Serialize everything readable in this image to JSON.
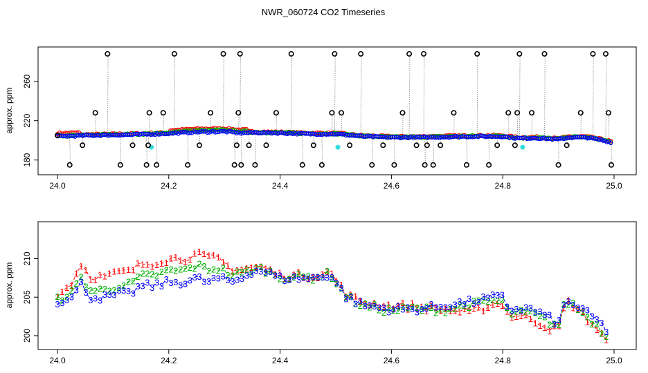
{
  "chart_data": [
    {
      "type": "scatter",
      "title": "NWR_060724  CO2 Timeseries",
      "xlabel": "",
      "ylabel": "approx. ppm",
      "xlim": [
        24.0,
        25.0
      ],
      "ylim": [
        165,
        295
      ],
      "xticks": [
        "24.0",
        "24.2",
        "24.4",
        "24.6",
        "24.8",
        "25.0"
      ],
      "yticks": [
        "180",
        "220",
        "260"
      ],
      "colors": {
        "series1": "#ff0000",
        "series2": "#00b000",
        "series3": "#0000ff",
        "flagged": "#000000",
        "cyan": "#33dddd",
        "spike": "#9a9a9a"
      },
      "base_curve": {
        "x": [
          24.0,
          24.05,
          24.1,
          24.15,
          24.2,
          24.25,
          24.3,
          24.33,
          24.35,
          24.4,
          24.45,
          24.5,
          24.55,
          24.6,
          24.65,
          24.7,
          24.75,
          24.8,
          24.83,
          24.86,
          24.9,
          24.92,
          24.95,
          24.98,
          24.995
        ],
        "y": [
          204,
          205,
          205.5,
          206,
          207,
          208.5,
          209,
          207.5,
          208,
          207.5,
          206.5,
          206.5,
          204,
          203,
          203,
          203.5,
          204,
          204,
          202,
          202.5,
          201,
          203,
          203,
          200,
          198
        ]
      },
      "flagged_points": {
        "x": [
          24.0,
          24.022,
          24.045,
          24.068,
          24.09,
          24.113,
          24.135,
          24.16,
          24.163,
          24.165,
          24.178,
          24.19,
          24.21,
          24.234,
          24.255,
          24.275,
          24.298,
          24.318,
          24.322,
          24.325,
          24.328,
          24.33,
          24.344,
          24.355,
          24.375,
          24.393,
          24.42,
          24.44,
          24.46,
          24.475,
          24.493,
          24.498,
          24.51,
          24.525,
          24.545,
          24.565,
          24.585,
          24.605,
          24.62,
          24.632,
          24.645,
          24.658,
          24.66,
          24.664,
          24.675,
          24.688,
          24.712,
          24.735,
          24.754,
          24.775,
          24.79,
          24.81,
          24.822,
          24.826,
          24.83,
          24.852,
          24.875,
          24.9,
          24.915,
          24.94,
          24.962,
          24.985,
          24.99,
          24.995
        ],
        "y": [
          205,
          175,
          195,
          228,
          288,
          175,
          195,
          175,
          195,
          228,
          175,
          228,
          288,
          175,
          195,
          228,
          288,
          175,
          195,
          228,
          288,
          175,
          195,
          175,
          195,
          228,
          288,
          175,
          195,
          175,
          228,
          288,
          228,
          195,
          288,
          175,
          195,
          175,
          228,
          288,
          195,
          288,
          175,
          195,
          175,
          195,
          228,
          175,
          288,
          175,
          195,
          228,
          195,
          228,
          288,
          228,
          288,
          175,
          195,
          228,
          288,
          288,
          228,
          175
        ]
      },
      "cyan_points": {
        "x": [
          24.165,
          24.5,
          24.832
        ],
        "y": [
          193,
          193,
          193
        ]
      }
    },
    {
      "type": "line",
      "title": "",
      "xlabel": "",
      "ylabel": "approx. ppm",
      "xlim": [
        24.0,
        25.0
      ],
      "ylim": [
        198.2,
        214.8
      ],
      "xticks": [
        "24.0",
        "24.2",
        "24.4",
        "24.6",
        "24.8",
        "25.0"
      ],
      "yticks": [
        "200",
        "205",
        "210"
      ],
      "series": [
        {
          "name": "1",
          "marker": "1",
          "color": "#ff0000",
          "offset": [
            0.6,
            2.6,
            3.2,
            0.4,
            0.3,
            0.4,
            0.4,
            -0.6,
            -1.4,
            -0.7,
            -1.4,
            0.0,
            -1.6
          ]
        },
        {
          "name": "2",
          "marker": "2",
          "color": "#00b000",
          "offset": [
            0.2,
            0.8,
            1.7,
            0.2,
            0.1,
            -0.2,
            0.1,
            -0.6,
            -0.3,
            -0.5,
            -0.5,
            0.0,
            -0.9
          ]
        },
        {
          "name": "3",
          "marker": "3",
          "color": "#0000ff",
          "offset": [
            0.0,
            0.0,
            0.0,
            0.0,
            0.0,
            0.0,
            0.0,
            0.0,
            0.0,
            0.0,
            0.0,
            0.0,
            0.0
          ]
        }
      ],
      "offset_x": [
        24.0,
        24.04,
        24.27,
        24.35,
        24.5,
        24.6,
        24.64,
        24.7,
        24.74,
        24.8,
        24.88,
        24.92,
        24.99
      ],
      "base_curve": {
        "x": [
          24.0,
          24.02,
          24.03,
          24.04,
          24.05,
          24.06,
          24.07,
          24.09,
          24.11,
          24.13,
          24.15,
          24.17,
          24.2,
          24.23,
          24.25,
          24.27,
          24.29,
          24.31,
          24.33,
          24.35,
          24.37,
          24.4,
          24.43,
          24.46,
          24.49,
          24.5,
          24.52,
          24.55,
          24.6,
          24.65,
          24.7,
          24.75,
          24.78,
          24.8,
          24.81,
          24.85,
          24.88,
          24.9,
          24.91,
          24.92,
          24.95,
          24.97,
          24.99
        ],
        "y": [
          204.5,
          205,
          205,
          207,
          206,
          205,
          205,
          205,
          205.5,
          205.5,
          206.5,
          206.5,
          207,
          207,
          207.5,
          207,
          207.5,
          207,
          207.5,
          208.5,
          208.5,
          207.5,
          207.5,
          207.5,
          208,
          207,
          205,
          204,
          203.5,
          203.5,
          204,
          204.5,
          205,
          205,
          203.5,
          203.5,
          202.5,
          201.5,
          204,
          204.5,
          203,
          202,
          200.5
        ]
      }
    }
  ]
}
